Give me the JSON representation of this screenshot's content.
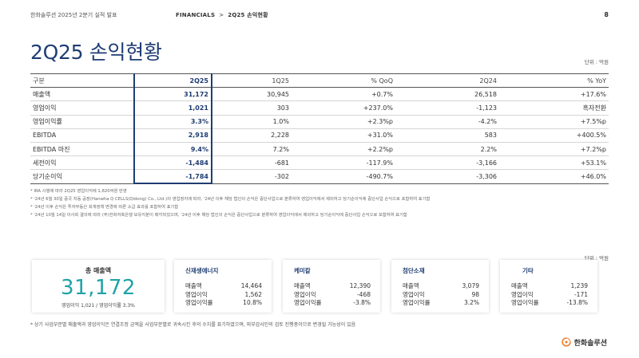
{
  "header": {
    "doc_title": "한화솔루션 2025년 2분기 실적 발표",
    "breadcrumb_section": "FINANCIALS",
    "breadcrumb_sep": ">",
    "breadcrumb_page": "2Q25 손익현황",
    "page_number": "8"
  },
  "title": "2Q25 손익현황",
  "unit": "단위 : 억원",
  "table": {
    "headers": [
      "구분",
      "2Q25",
      "1Q25",
      "% QoQ",
      "2Q24",
      "% YoY"
    ],
    "rows": [
      {
        "label": "매출액",
        "cur": "31,172",
        "q1": "30,945",
        "qoq": "+0.7%",
        "prev": "26,518",
        "yoy": "+17.6%"
      },
      {
        "label": "영업이익",
        "cur": "1,021",
        "q1": "303",
        "qoq": "+237.0%",
        "prev": "-1,123",
        "yoy": "흑자전환"
      },
      {
        "label": "영업이익률",
        "cur": "3.3%",
        "q1": "1.0%",
        "qoq": "+2.3%p",
        "prev": "-4.2%",
        "yoy": "+7.5%p"
      },
      {
        "label": "EBITDA",
        "cur": "2,918",
        "q1": "2,228",
        "qoq": "+31.0%",
        "prev": "583",
        "yoy": "+400.5%"
      },
      {
        "label": "EBITDA 마진",
        "cur": "9.4%",
        "q1": "7.2%",
        "qoq": "+2.2%p",
        "prev": "2.2%",
        "yoy": "+7.2%p"
      },
      {
        "label": "세전이익",
        "cur": "-1,484",
        "q1": "-681",
        "qoq": "-117.9%",
        "prev": "-3,166",
        "yoy": "+53.1%"
      },
      {
        "label": "당기순이익",
        "cur": "-1,784",
        "q1": "-302",
        "qoq": "-490.7%",
        "prev": "-3,306",
        "yoy": "+46.0%"
      }
    ]
  },
  "notes": [
    "* IRA 시행에 따라 2Q25 영업이익에 1,820억원 반영",
    "* '24년 6월 30일 중국 치동 공장(Hanwha Q CELLS(Qidong) Co., Ltd.)의 영업정지에 따라, '24년 이후 해당 법인의 손익은 중단사업으로 분류하여 영업이익에서 제외하고 당기순이익에 중단사업 손익으로 포함하여 표기함",
    "* '24년 이후 손익은 투자부동산 회계정책 변경에 따른 소급 효과를 포함하여 표기함",
    "* '24년 10월 14일 이사회 결의에 따라 (주)한화저축은행 보유지분이 매각되었으며, '24년 이후 해당 법인의 손익은 중단사업으로 분류하여 영업이익에서 제외하고 당기순이익에 중단사업 손익으로 포함하여 표기함"
  ],
  "cards": {
    "total": {
      "label": "총 매출액",
      "value": "31,172",
      "sub": "영업이익 1,021 / 영업이익률 3.3%"
    },
    "renewable": {
      "title": "신재생에너지",
      "rows": [
        [
          "매출액",
          "14,464"
        ],
        [
          "영업이익",
          "1,562"
        ],
        [
          "영업이익률",
          "10.8%"
        ]
      ]
    },
    "chemical": {
      "title": "케미칼",
      "rows": [
        [
          "매출액",
          "12,390"
        ],
        [
          "영업이익",
          "-468"
        ],
        [
          "영업이익률",
          "-3.8%"
        ]
      ]
    },
    "advanced": {
      "title": "첨단소재",
      "rows": [
        [
          "매출액",
          "3,079"
        ],
        [
          "영업이익",
          "98"
        ],
        [
          "영업이익률",
          "3.2%"
        ]
      ]
    },
    "other": {
      "title": "기타",
      "rows": [
        [
          "매출액",
          "1,239"
        ],
        [
          "영업이익",
          "-171"
        ],
        [
          "영업이익률",
          "-13.8%"
        ]
      ]
    }
  },
  "footnote": "* 상기 사업부문별 매출액과 영업이익은 연결조정 금액을 사업부문별로 귀속시킨 후의 수치를 표기하였으며, 외부감사인의 검토 진행중이므로 변경될 가능성이 있음",
  "logo_text": "한화솔루션",
  "colors": {
    "navy": "#1f3d73",
    "teal": "#1fa3a8",
    "logo_orange": "#f07a2a"
  }
}
